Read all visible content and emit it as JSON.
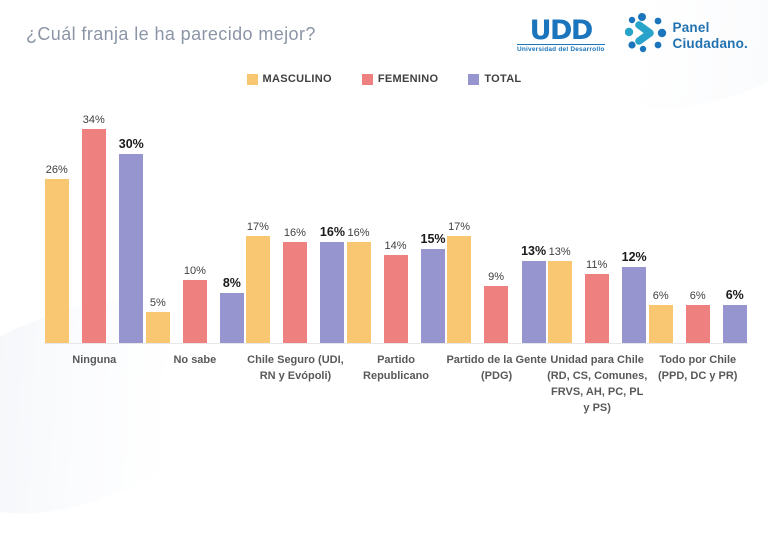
{
  "title": "¿Cuál franja le ha parecido mejor?",
  "logos": {
    "udd_wordmark": "UDD",
    "udd_caption": "Universidad del Desarrollo",
    "panel_line1": "Panel",
    "panel_line2": "Ciudadano."
  },
  "colors": {
    "masculino": "#F9C672",
    "femenino": "#EE8080",
    "total": "#9795CF",
    "title_text": "#8B95A6",
    "logo_blue": "#1B75BC",
    "logo_teal": "#28A3C9"
  },
  "chart_data": {
    "type": "bar",
    "title": "¿Cuál franja le ha parecido mejor?",
    "categories": [
      "Ninguna",
      "No sabe",
      "Chile Seguro (UDI, RN y Evópoli)",
      "Partido Republicano",
      "Partido de la Gente (PDG)",
      "Unidad para Chile (RD, CS, Comunes, FRVS, AH, PC, PL y PS)",
      "Todo por Chile (PPD, DC y PR)"
    ],
    "series": [
      {
        "name": "MASCULINO",
        "color": "#F9C672",
        "bold_labels": false,
        "values": [
          26,
          5,
          17,
          16,
          17,
          13,
          6
        ]
      },
      {
        "name": "FEMENINO",
        "color": "#EE8080",
        "bold_labels": false,
        "values": [
          34,
          10,
          16,
          14,
          9,
          11,
          6
        ]
      },
      {
        "name": "TOTAL",
        "color": "#9795CF",
        "bold_labels": true,
        "values": [
          30,
          8,
          16,
          15,
          13,
          12,
          6
        ]
      }
    ],
    "value_suffix": "%",
    "ylim": [
      0,
      34
    ],
    "grid": false,
    "legend_position": "top",
    "data_labels": true
  }
}
